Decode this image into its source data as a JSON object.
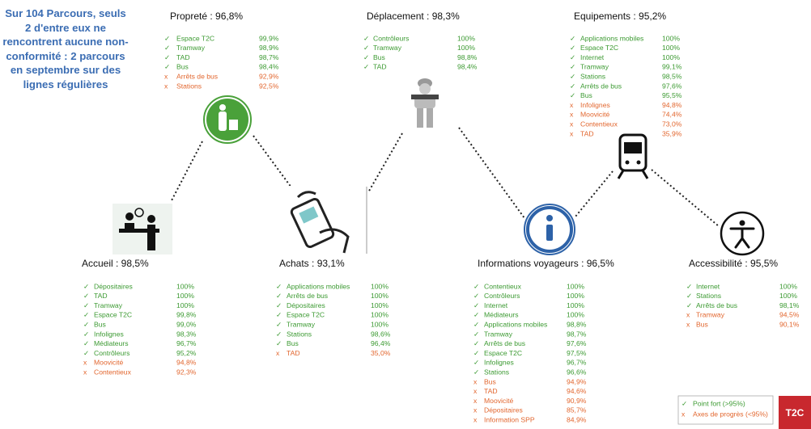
{
  "headline": "Sur 104 Parcours, seuls 2 d'entre eux ne rencontrent aucune non-conformité : 2 parcours en septembre sur des lignes régulières",
  "sections": [
    {
      "title": "Propreté : 96,8%",
      "items": [
        {
          "mark": "✓",
          "label": "Espace T2C",
          "value": "99,9%"
        },
        {
          "mark": "✓",
          "label": "Tramway",
          "value": "98,9%"
        },
        {
          "mark": "✓",
          "label": "TAD",
          "value": "98,7%"
        },
        {
          "mark": "✓",
          "label": "Bus",
          "value": "98,4%"
        },
        {
          "mark": "x",
          "label": "Arrêts de bus",
          "value": "92,9%"
        },
        {
          "mark": "x",
          "label": "Stations",
          "value": "92,5%"
        }
      ]
    },
    {
      "title": "Déplacement : 98,3%",
      "items": [
        {
          "mark": "✓",
          "label": "Contrôleurs",
          "value": "100%"
        },
        {
          "mark": "✓",
          "label": "Tramway",
          "value": "100%"
        },
        {
          "mark": "✓",
          "label": "Bus",
          "value": "98,8%"
        },
        {
          "mark": "✓",
          "label": "TAD",
          "value": "98,4%"
        }
      ]
    },
    {
      "title": "Equipements : 95,2%",
      "items": [
        {
          "mark": "✓",
          "label": "Applications mobiles",
          "value": "100%"
        },
        {
          "mark": "✓",
          "label": "Espace T2C",
          "value": "100%"
        },
        {
          "mark": "✓",
          "label": "Internet",
          "value": "100%"
        },
        {
          "mark": "✓",
          "label": "Tramway",
          "value": "99,1%"
        },
        {
          "mark": "✓",
          "label": "Stations",
          "value": "98,5%"
        },
        {
          "mark": "✓",
          "label": "Arrêts de bus",
          "value": "97,6%"
        },
        {
          "mark": "✓",
          "label": "Bus",
          "value": "95,5%"
        },
        {
          "mark": "x",
          "label": "Infolignes",
          "value": "94,8%"
        },
        {
          "mark": "x",
          "label": "Moovicité",
          "value": "74,4%"
        },
        {
          "mark": "x",
          "label": "Contentieux",
          "value": "73,0%"
        },
        {
          "mark": "x",
          "label": "TAD",
          "value": "35,9%"
        }
      ]
    },
    {
      "title": "Accueil : 98,5%",
      "items": [
        {
          "mark": "✓",
          "label": "Dépositaires",
          "value": "100%"
        },
        {
          "mark": "✓",
          "label": "TAD",
          "value": "100%"
        },
        {
          "mark": "✓",
          "label": "Tramway",
          "value": "100%"
        },
        {
          "mark": "✓",
          "label": "Espace T2C",
          "value": "99,8%"
        },
        {
          "mark": "✓",
          "label": "Bus",
          "value": "99,0%"
        },
        {
          "mark": "✓",
          "label": "Infolignes",
          "value": "98,3%"
        },
        {
          "mark": "✓",
          "label": "Médiateurs",
          "value": "96,7%"
        },
        {
          "mark": "✓",
          "label": "Contrôleurs",
          "value": "95,2%"
        },
        {
          "mark": "x",
          "label": "Moovicité",
          "value": "94,8%"
        },
        {
          "mark": "x",
          "label": "Contentieux",
          "value": "92,3%"
        }
      ]
    },
    {
      "title": "Achats : 93,1%",
      "items": [
        {
          "mark": "✓",
          "label": "Applications mobiles",
          "value": "100%"
        },
        {
          "mark": "✓",
          "label": "Arrêts de bus",
          "value": "100%"
        },
        {
          "mark": "✓",
          "label": "Dépositaires",
          "value": "100%"
        },
        {
          "mark": "✓",
          "label": "Espace T2C",
          "value": "100%"
        },
        {
          "mark": "✓",
          "label": "Tramway",
          "value": "100%"
        },
        {
          "mark": "✓",
          "label": "Stations",
          "value": "98,6%"
        },
        {
          "mark": "✓",
          "label": "Bus",
          "value": "96,4%"
        },
        {
          "mark": "x",
          "label": "TAD",
          "value": "35,0%"
        }
      ]
    },
    {
      "title": "Informations voyageurs : 96,5%",
      "items": [
        {
          "mark": "✓",
          "label": "Contentieux",
          "value": "100%"
        },
        {
          "mark": "✓",
          "label": "Contrôleurs",
          "value": "100%"
        },
        {
          "mark": "✓",
          "label": "Internet",
          "value": "100%"
        },
        {
          "mark": "✓",
          "label": "Médiateurs",
          "value": "100%"
        },
        {
          "mark": "✓",
          "label": "Applications mobiles",
          "value": "98,8%"
        },
        {
          "mark": "✓",
          "label": "Tramway",
          "value": "98,7%"
        },
        {
          "mark": "✓",
          "label": "Arrêts de bus",
          "value": "97,6%"
        },
        {
          "mark": "✓",
          "label": "Espace T2C",
          "value": "97,5%"
        },
        {
          "mark": "✓",
          "label": "Infolignes",
          "value": "96,7%"
        },
        {
          "mark": "✓",
          "label": "Stations",
          "value": "96,6%"
        },
        {
          "mark": "x",
          "label": "Bus",
          "value": "94,9%"
        },
        {
          "mark": "x",
          "label": "TAD",
          "value": "94,6%"
        },
        {
          "mark": "x",
          "label": "Moovicité",
          "value": "90,9%"
        },
        {
          "mark": "x",
          "label": "Dépositaires",
          "value": "85,7%"
        },
        {
          "mark": "x",
          "label": "Information SPP",
          "value": "84,9%"
        }
      ]
    },
    {
      "title": "Accessibilité : 95,5%",
      "items": [
        {
          "mark": "✓",
          "label": "Internet",
          "value": "100%"
        },
        {
          "mark": "✓",
          "label": "Stations",
          "value": "100%"
        },
        {
          "mark": "✓",
          "label": "Arrêts de bus",
          "value": "98,1%"
        },
        {
          "mark": "x",
          "label": "Tramway",
          "value": "94,5%"
        },
        {
          "mark": "x",
          "label": "Bus",
          "value": "90,1%"
        }
      ]
    }
  ],
  "legend": {
    "items": [
      {
        "mark": "✓",
        "text": "Point fort (>95%)",
        "color": "#3c9a32"
      },
      {
        "mark": "x",
        "text": "Axes de progrès (<95%)",
        "color": "#e2662e"
      }
    ]
  },
  "logo": "T2C"
}
